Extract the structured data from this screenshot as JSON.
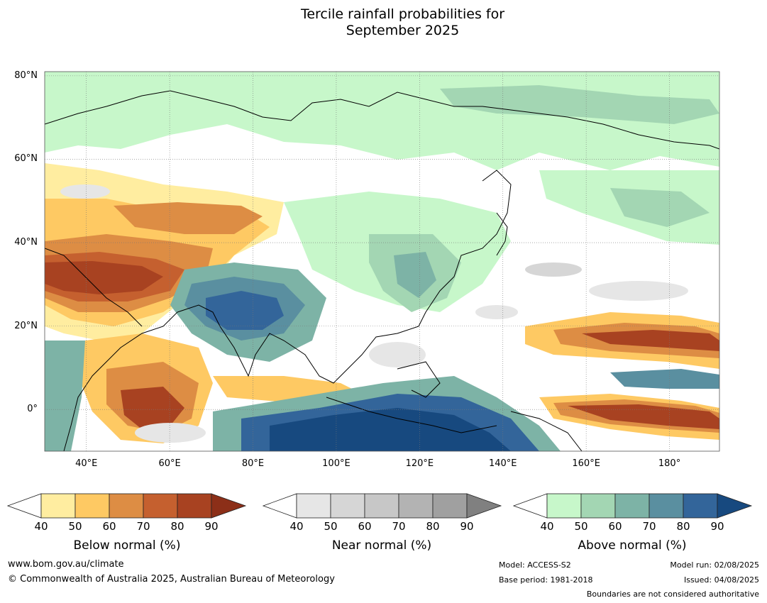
{
  "title_line1": "Tercile rainfall probabilities for",
  "title_line2": "September 2025",
  "map": {
    "lat_labels": [
      "80°N",
      "60°N",
      "40°N",
      "20°N",
      "0°"
    ],
    "lon_labels": [
      "40°E",
      "60°E",
      "80°E",
      "100°E",
      "120°E",
      "140°E",
      "160°E",
      "180°"
    ],
    "lat_values": [
      80,
      60,
      40,
      20,
      0
    ],
    "lon_values": [
      40,
      60,
      80,
      100,
      120,
      140,
      160,
      180
    ],
    "extent": {
      "lon_min": 30,
      "lon_max": 192,
      "lat_min": -10,
      "lat_max": 81
    }
  },
  "colorbars": [
    {
      "name": "below",
      "title": "Below normal (%)",
      "ticks": [
        "40",
        "50",
        "60",
        "70",
        "80",
        "90"
      ],
      "colors": [
        "#ffffff",
        "#ffeda0",
        "#fec963",
        "#dd8d44",
        "#c5602f",
        "#a84221",
        "#8c2f18"
      ]
    },
    {
      "name": "near",
      "title": "Near normal (%)",
      "ticks": [
        "40",
        "50",
        "60",
        "70",
        "80",
        "90"
      ],
      "colors": [
        "#ffffff",
        "#e6e6e6",
        "#d6d6d6",
        "#c7c7c7",
        "#b3b3b3",
        "#a0a0a0",
        "#808080"
      ]
    },
    {
      "name": "above",
      "title": "Above normal (%)",
      "ticks": [
        "40",
        "50",
        "60",
        "70",
        "80",
        "90"
      ],
      "colors": [
        "#ffffff",
        "#c7f7ca",
        "#a3d6b3",
        "#7db3a6",
        "#5a8fa0",
        "#33659a",
        "#17497f"
      ]
    }
  ],
  "footer": {
    "website": "www.bom.gov.au/climate",
    "copyright": "© Commonwealth of Australia 2025, Australian Bureau of Meteorology",
    "model": "Model: ACCESS-S2",
    "base_period": "Base period: 1981-2018",
    "model_run": "Model run: 02/08/2025",
    "issued": "Issued: 04/08/2025",
    "boundaries_note": "Boundaries are not considered authoritative"
  }
}
